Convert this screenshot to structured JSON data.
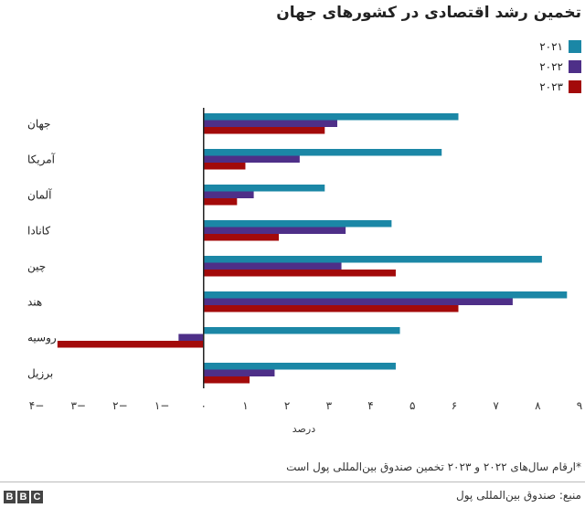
{
  "title": "تخمین رشد اقتصادی در کشورهای جهان",
  "legend": [
    {
      "label": "۲۰۲۱",
      "color": "#1b87a6"
    },
    {
      "label": "۲۰۲۲",
      "color": "#4e2f88"
    },
    {
      "label": "۲۰۲۳",
      "color": "#a30a0a"
    }
  ],
  "footnote": "*ارقام سال‌های ۲۰۲۲ و ۲۰۲۳ تخمین صندوق بین‌المللی پول است",
  "source": "منبع: صندوق بین‌المللی پول",
  "logo": [
    "B",
    "B",
    "C"
  ],
  "chart_data": {
    "type": "bar",
    "orientation": "horizontal",
    "categories": [
      "جهان",
      "آمریکا",
      "آلمان",
      "کانادا",
      "چین",
      "هند",
      "روسیه",
      "برزیل"
    ],
    "series": [
      {
        "name": "۲۰۲۱",
        "color": "#1b87a6",
        "values": [
          6.1,
          5.7,
          2.9,
          4.5,
          8.1,
          8.7,
          4.7,
          4.6
        ]
      },
      {
        "name": "۲۰۲۲",
        "color": "#4e2f88",
        "values": [
          3.2,
          2.3,
          1.2,
          3.4,
          3.3,
          7.4,
          -0.6,
          1.7
        ]
      },
      {
        "name": "۲۰۲۳",
        "color": "#a30a0a",
        "values": [
          2.9,
          1.0,
          0.8,
          1.8,
          4.6,
          6.1,
          -3.5,
          1.1
        ]
      }
    ],
    "xlim": [
      -4,
      9
    ],
    "xticks": [
      -4,
      -3,
      -2,
      -1,
      0,
      1,
      2,
      3,
      4,
      5,
      6,
      7,
      8,
      9
    ],
    "xtick_labels": [
      "۴−",
      "۳−",
      "۲−",
      "۱−",
      "۰",
      "۱",
      "۲",
      "۳",
      "۴",
      "۵",
      "۶",
      "۷",
      "۸",
      "۹"
    ],
    "xlabel": "درصد",
    "ylabel": "",
    "grid": false,
    "legend_position": "top-right"
  }
}
